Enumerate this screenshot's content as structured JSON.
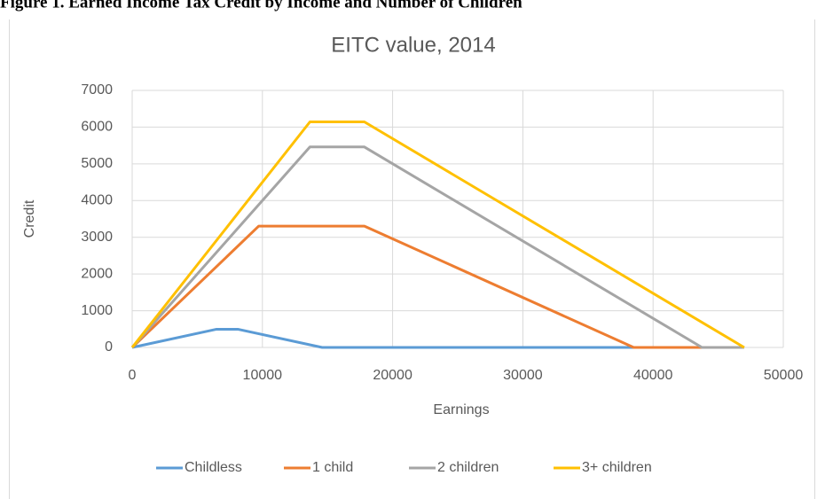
{
  "caption": "Figure 1. Earned Income Tax Credit by Income and Number of Children",
  "chart_data": {
    "type": "line",
    "title": "EITC value, 2014",
    "x_label": "Earnings",
    "y_label": "Credit",
    "xlim": [
      0,
      50000
    ],
    "xticks": [
      0,
      10000,
      20000,
      30000,
      40000,
      50000
    ],
    "ylim": [
      0,
      7000
    ],
    "yticks": [
      0,
      1000,
      2000,
      3000,
      4000,
      5000,
      6000,
      7000
    ],
    "grid": true,
    "legend": "bottom",
    "series": [
      {
        "name": "Childless",
        "color": "#5b9bd5",
        "x": [
          0,
          6480,
          8110,
          14590,
          38511
        ],
        "values": [
          0,
          496,
          496,
          0,
          0
        ]
      },
      {
        "name": "1 child",
        "color": "#ed7d31",
        "x": [
          0,
          9720,
          17830,
          38511,
          43756
        ],
        "values": [
          0,
          3305,
          3305,
          0,
          0
        ]
      },
      {
        "name": "2 children",
        "color": "#a5a5a5",
        "x": [
          0,
          13650,
          17830,
          43756,
          46997
        ],
        "values": [
          0,
          5460,
          5460,
          0,
          0
        ]
      },
      {
        "name": "3+ children",
        "color": "#ffc000",
        "x": [
          0,
          13650,
          17830,
          46997
        ],
        "values": [
          0,
          6143,
          6143,
          0
        ]
      }
    ]
  }
}
